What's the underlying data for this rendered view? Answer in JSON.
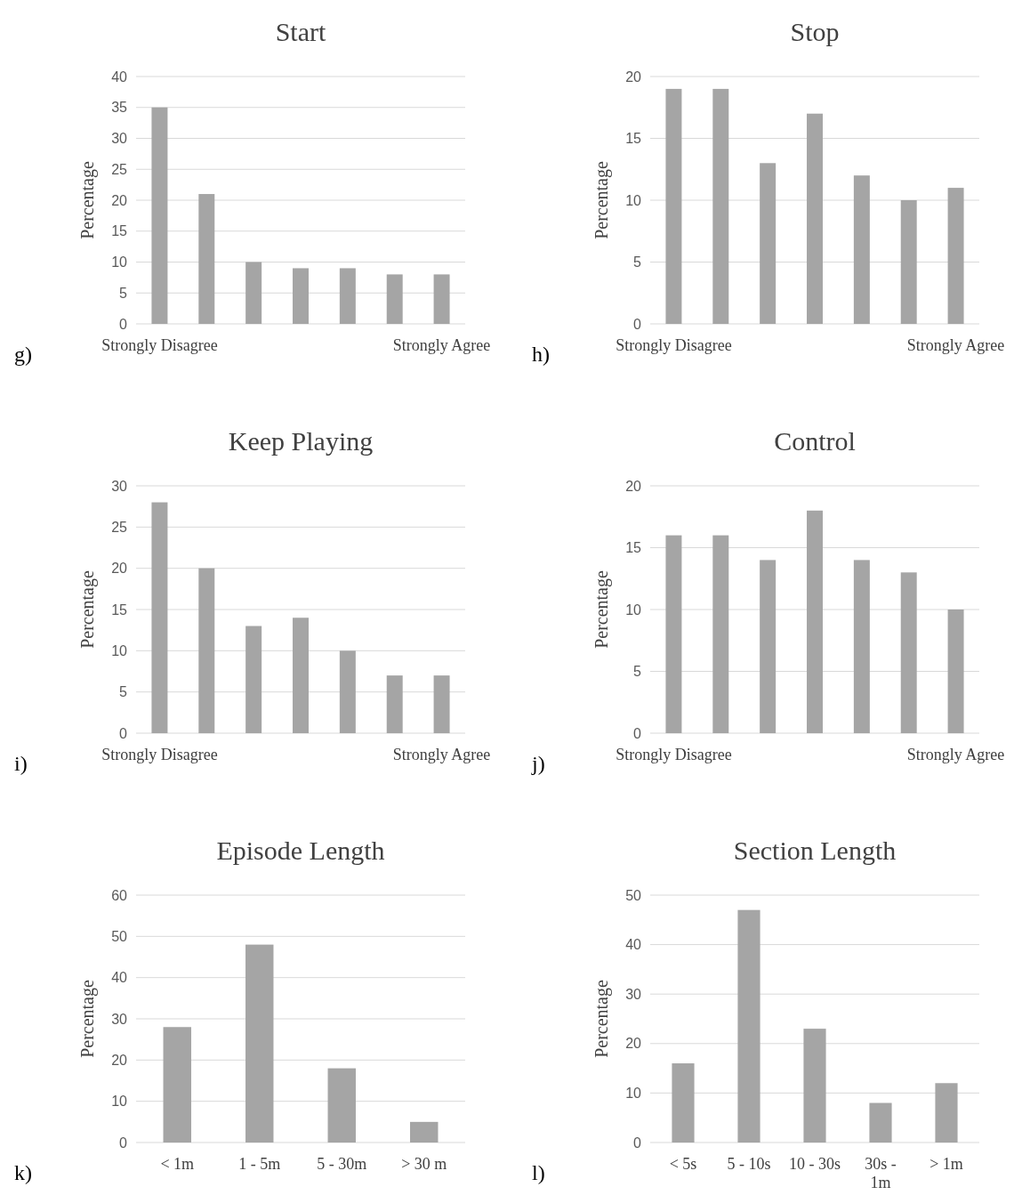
{
  "chart_data": [
    {
      "type": "bar",
      "title": "Start",
      "ylabel": "Percentage",
      "categories": [
        "Strongly Disagree",
        null,
        null,
        null,
        null,
        null,
        "Strongly Agree"
      ],
      "values": [
        35,
        21,
        10,
        9,
        9,
        8,
        8
      ],
      "color": "#a5a5a5",
      "ylim": [
        0,
        40
      ],
      "yticks": [
        0,
        5,
        10,
        15,
        20,
        25,
        30,
        35,
        40
      ],
      "grid": "y",
      "annotations": [
        "g)"
      ]
    },
    {
      "type": "bar",
      "title": "Stop",
      "ylabel": "Percentage",
      "categories": [
        "Strongly Disagree",
        null,
        null,
        null,
        null,
        null,
        "Strongly Agree"
      ],
      "values": [
        19,
        19,
        13,
        17,
        12,
        10,
        11
      ],
      "color": "#a5a5a5",
      "ylim": [
        0,
        20
      ],
      "yticks": [
        0,
        5,
        10,
        15,
        20
      ],
      "grid": "y",
      "annotations": [
        "h)"
      ]
    },
    {
      "type": "bar",
      "title": "Keep Playing",
      "ylabel": "Percentage",
      "categories": [
        "Strongly Disagree",
        null,
        null,
        null,
        null,
        null,
        "Strongly Agree"
      ],
      "values": [
        28,
        20,
        13,
        14,
        10,
        7,
        7
      ],
      "color": "#a5a5a5",
      "ylim": [
        0,
        30
      ],
      "yticks": [
        0,
        5,
        10,
        15,
        20,
        25,
        30
      ],
      "grid": "y",
      "annotations": [
        "i)"
      ]
    },
    {
      "type": "bar",
      "title": "Control",
      "ylabel": "Percentage",
      "categories": [
        "Strongly Disagree",
        null,
        null,
        null,
        null,
        null,
        "Strongly Agree"
      ],
      "values": [
        16,
        16,
        14,
        18,
        14,
        13,
        10
      ],
      "color": "#a5a5a5",
      "ylim": [
        0,
        20
      ],
      "yticks": [
        0,
        5,
        10,
        15,
        20
      ],
      "grid": "y",
      "annotations": [
        "j)"
      ]
    },
    {
      "type": "bar",
      "title": "Episode Length",
      "ylabel": "Percentage",
      "categories": [
        "< 1m",
        "1 - 5m",
        "5 - 30m",
        "> 30 m"
      ],
      "values": [
        28,
        48,
        18,
        5
      ],
      "color": "#a5a5a5",
      "ylim": [
        0,
        60
      ],
      "yticks": [
        0,
        10,
        20,
        30,
        40,
        50,
        60
      ],
      "grid": "y",
      "annotations": [
        "k)"
      ]
    },
    {
      "type": "bar",
      "title": "Section Length",
      "ylabel": "Percentage",
      "categories": [
        "< 5s",
        "5 - 10s",
        "10 - 30s",
        "30s -\n1m",
        "> 1m"
      ],
      "values": [
        16,
        47,
        23,
        8,
        12
      ],
      "color": "#a5a5a5",
      "ylim": [
        0,
        50
      ],
      "yticks": [
        0,
        10,
        20,
        30,
        40,
        50
      ],
      "grid": "y",
      "annotations": [
        "l)"
      ]
    }
  ]
}
